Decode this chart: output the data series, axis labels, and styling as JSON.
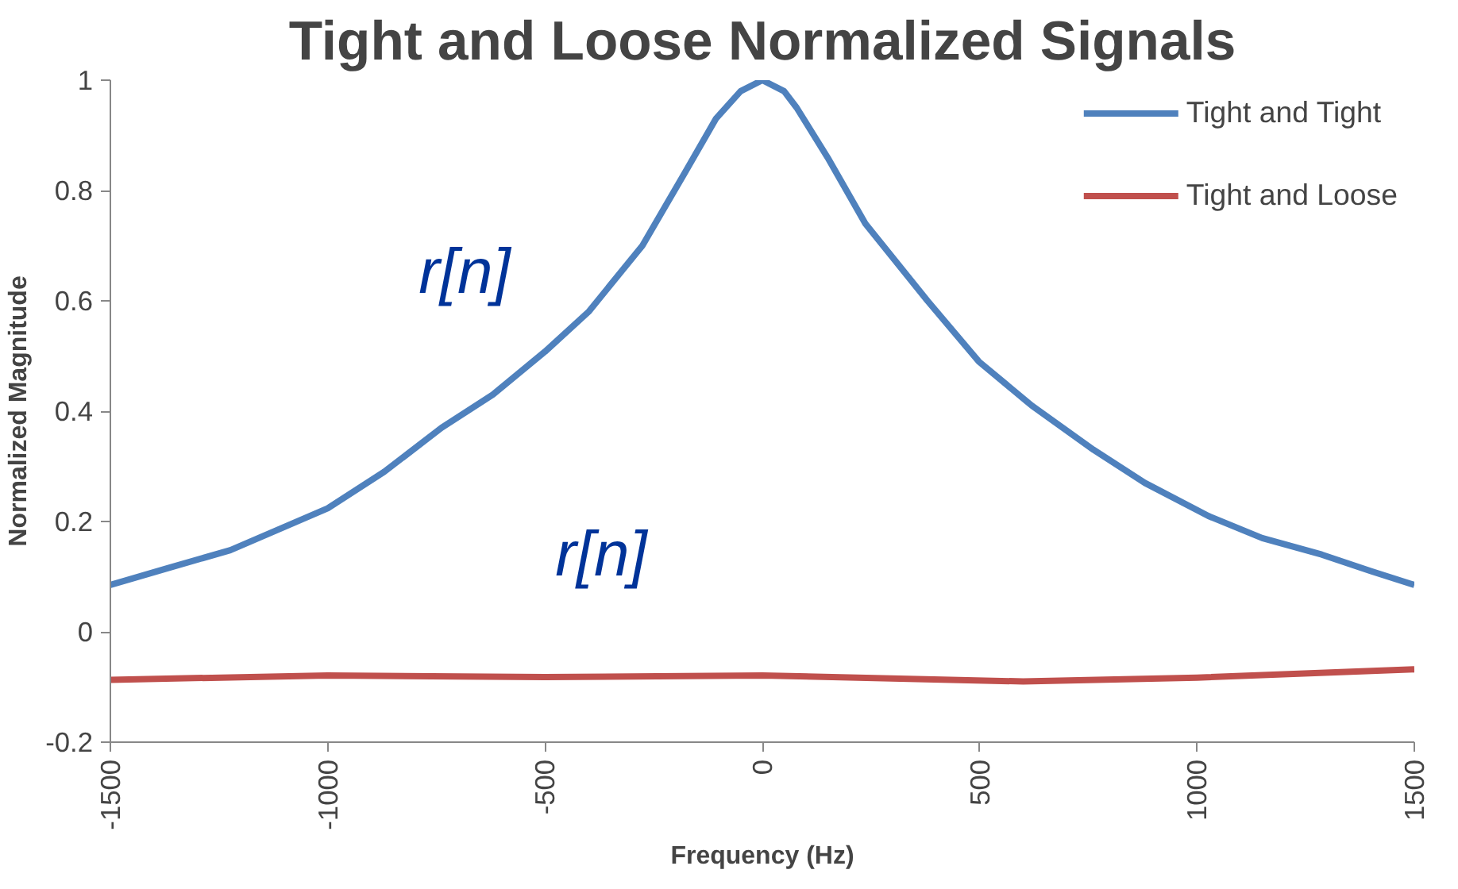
{
  "chart_data": {
    "type": "line",
    "title": "Tight and Loose Normalized Signals",
    "xlabel": "Frequency (Hz)",
    "ylabel": "Normalized Magnitude",
    "xlim": [
      -1500,
      1500
    ],
    "xticks": [
      -1500,
      -1000,
      -500,
      0,
      500,
      1000,
      1500
    ],
    "ylim": [
      -0.2,
      1
    ],
    "yticks": [
      -0.2,
      0,
      0.2,
      0.4,
      0.6,
      0.8,
      1
    ],
    "grid": false,
    "legend": "top right",
    "marker": "none",
    "line_style": "solid",
    "series": [
      {
        "name": "Tight and Tight",
        "color": "#4f81bd",
        "x": [
          -1500,
          -1370,
          -1224,
          -1000,
          -870,
          -738,
          -620,
          -500,
          -400,
          -276,
          -180,
          -107,
          -50,
          0,
          50,
          79,
          150,
          237,
          380,
          498,
          620,
          762,
          880,
          1026,
          1150,
          1287,
          1400,
          1500
        ],
        "values": [
          0.085,
          0.115,
          0.148,
          0.224,
          0.29,
          0.37,
          0.43,
          0.508,
          0.58,
          0.7,
          0.83,
          0.93,
          0.98,
          1,
          0.98,
          0.95,
          0.86,
          0.74,
          0.6,
          0.49,
          0.41,
          0.33,
          0.27,
          0.21,
          0.17,
          0.14,
          0.11,
          0.085
        ]
      },
      {
        "name": "Tight and Loose",
        "color": "#c0504d",
        "x": [
          -1500,
          -1000,
          -500,
          0,
          600,
          1000,
          1500
        ],
        "values": [
          -0.087,
          -0.079,
          -0.082,
          -0.079,
          -0.09,
          -0.083,
          -0.068
        ]
      }
    ],
    "annotations": [
      "r[n]",
      "r[n]"
    ]
  }
}
